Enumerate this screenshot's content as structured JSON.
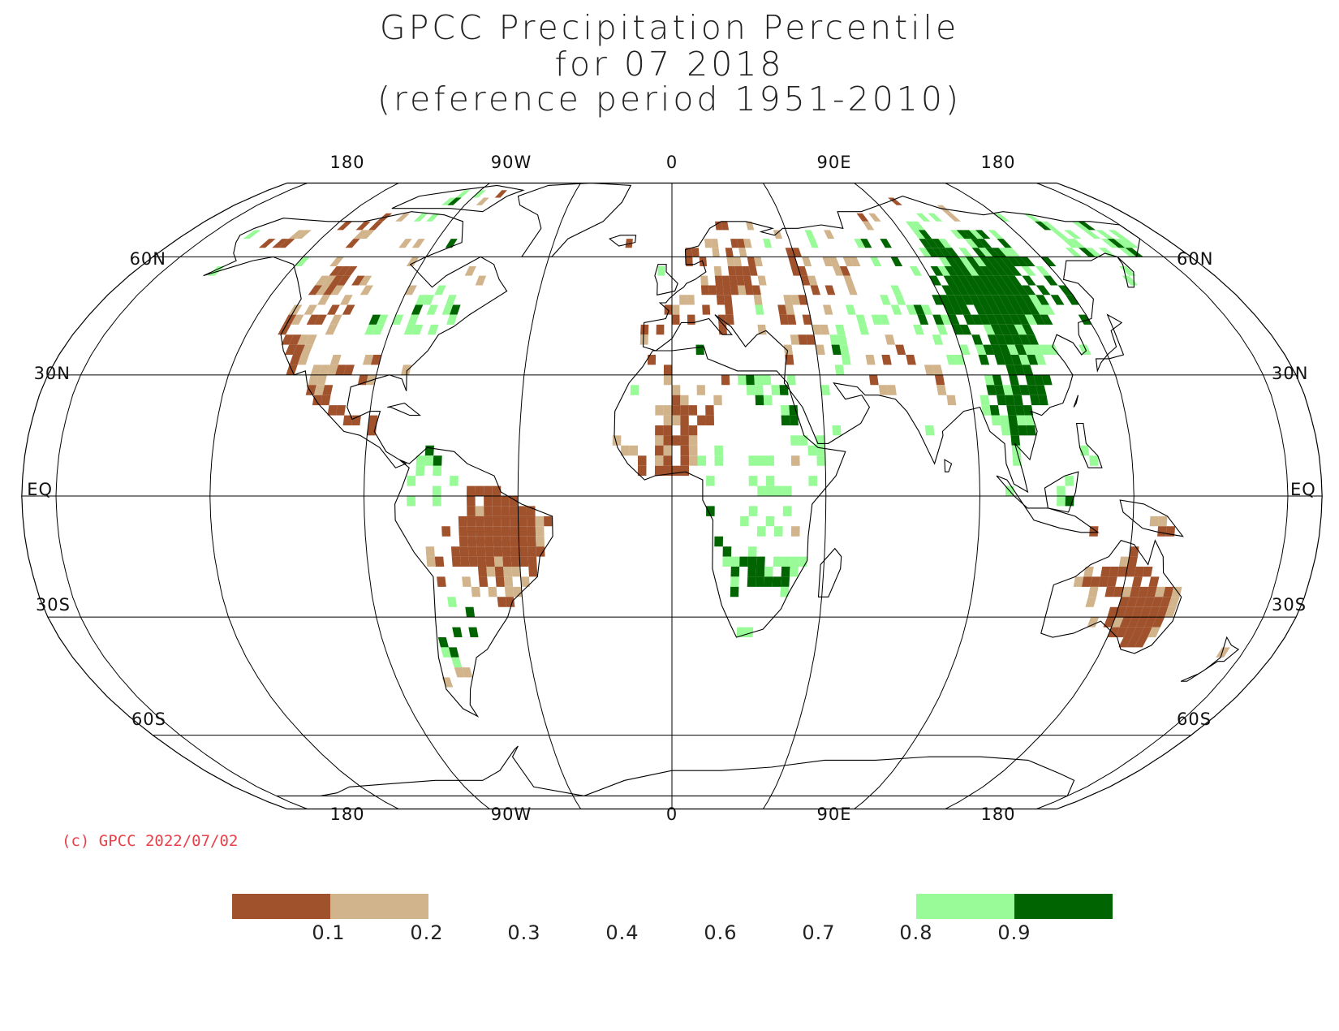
{
  "title_lines": [
    "GPCC Precipitation Percentile",
    "for 07 2018",
    "(reference period 1951-2010)"
  ],
  "copyright": "(c) GPCC 2022/07/02",
  "map": {
    "projection": "Robinson",
    "longitude_labels": [
      "180",
      "90W",
      "0",
      "90E",
      "180"
    ],
    "latitude_labels": [
      "60N",
      "30N",
      "EQ",
      "30S",
      "60S"
    ],
    "colors": {
      "very_dry": "#a0522d",
      "dry": "#d2b48c",
      "wet": "#98fb98",
      "very_wet": "#006400",
      "coast": "#000000",
      "grid": "#000000"
    }
  },
  "legend": {
    "tick_labels": [
      "0.1",
      "0.2",
      "0.3",
      "0.4",
      "0.6",
      "0.7",
      "0.8",
      "0.9"
    ],
    "bins": [
      {
        "range": "< 0.1",
        "color": "#a0522d"
      },
      {
        "range": "0.1-0.2",
        "color": "#d2b48c"
      },
      {
        "range": "0.2-0.3",
        "color": "#ffffff"
      },
      {
        "range": "0.3-0.4",
        "color": "#ffffff"
      },
      {
        "range": "0.4-0.6",
        "color": "#ffffff"
      },
      {
        "range": "0.6-0.7",
        "color": "#ffffff"
      },
      {
        "range": "0.7-0.8",
        "color": "#ffffff"
      },
      {
        "range": "0.8-0.9",
        "color": "#98fb98"
      },
      {
        "range": "> 0.9",
        "color": "#006400"
      }
    ]
  }
}
